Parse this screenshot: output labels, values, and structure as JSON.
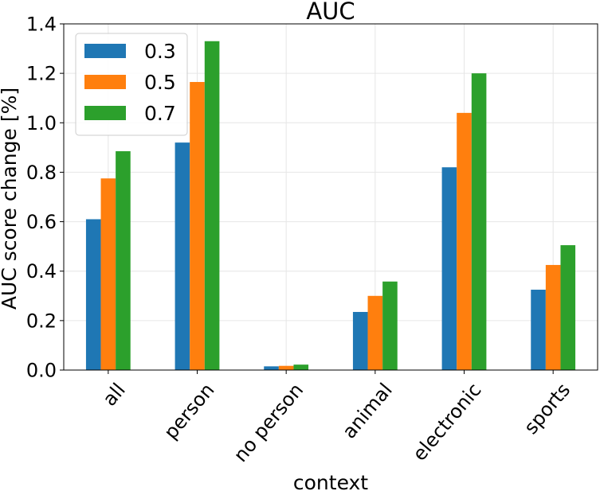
{
  "chart_data": {
    "type": "bar",
    "title": "AUC",
    "xlabel": "context",
    "ylabel": "AUC score change [%]",
    "categories": [
      "all",
      "person",
      "no person",
      "animal",
      "electronic",
      "sports"
    ],
    "series": [
      {
        "name": "0.3",
        "color": "#1f77b4",
        "values": [
          0.61,
          0.92,
          0.015,
          0.235,
          0.82,
          0.325
        ]
      },
      {
        "name": "0.5",
        "color": "#ff7f0e",
        "values": [
          0.775,
          1.165,
          0.017,
          0.3,
          1.04,
          0.425
        ]
      },
      {
        "name": "0.7",
        "color": "#2ca02c",
        "values": [
          0.885,
          1.33,
          0.022,
          0.358,
          1.2,
          0.505
        ]
      }
    ],
    "ylim": [
      0,
      1.4
    ],
    "yticks": [
      "0.0",
      "0.2",
      "0.4",
      "0.6",
      "0.8",
      "1.0",
      "1.2",
      "1.4"
    ],
    "grid": true,
    "legend_position": "top-left"
  }
}
